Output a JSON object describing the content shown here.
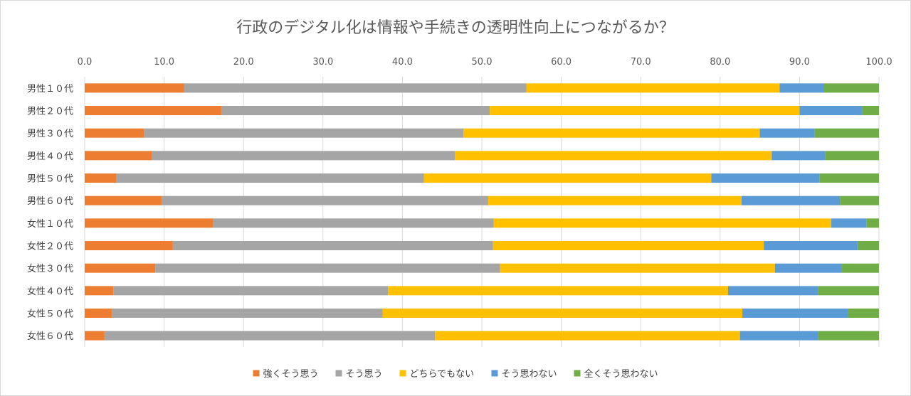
{
  "chart_data": {
    "type": "bar",
    "orientation": "horizontal",
    "stacked": true,
    "title": "行政のデジタル化は情報や手続きの透明性向上につながるか？",
    "xlabel": "",
    "ylabel": "",
    "xlim": [
      0,
      100
    ],
    "x_ticks": [
      "0.0",
      "10.0",
      "20.0",
      "30.0",
      "40.0",
      "50.0",
      "60.0",
      "70.0",
      "80.0",
      "90.0",
      "100.0"
    ],
    "x_axis_position": "top",
    "grid": true,
    "legend_position": "bottom",
    "categories": [
      "男性１０代",
      "男性２０代",
      "男性３０代",
      "男性４０代",
      "男性５０代",
      "男性６０代",
      "女性１０代",
      "女性２０代",
      "女性３０代",
      "女性４０代",
      "女性５０代",
      "女性６０代"
    ],
    "series": [
      {
        "name": "強くそう思う",
        "color": "#ed7d31",
        "values": [
          12.5,
          17.2,
          7.5,
          8.5,
          4.0,
          9.7,
          16.2,
          11.1,
          8.9,
          3.6,
          3.4,
          2.5
        ]
      },
      {
        "name": "そう思う",
        "color": "#a5a5a5",
        "values": [
          43.1,
          33.8,
          40.2,
          38.1,
          38.7,
          41.1,
          35.3,
          40.3,
          43.4,
          34.6,
          34.1,
          41.6
        ]
      },
      {
        "name": "どちらでもない",
        "color": "#ffc000",
        "values": [
          31.9,
          39.0,
          37.3,
          39.9,
          36.2,
          31.9,
          42.5,
          34.1,
          34.6,
          42.8,
          45.3,
          38.4
        ]
      },
      {
        "name": "そう思わない",
        "color": "#5b9bd5",
        "values": [
          5.6,
          7.9,
          6.9,
          6.7,
          13.6,
          12.4,
          4.4,
          11.8,
          8.4,
          11.3,
          13.3,
          9.8
        ]
      },
      {
        "name": "全くそう思わない",
        "color": "#70ad47",
        "values": [
          6.9,
          2.1,
          8.1,
          6.8,
          7.5,
          4.9,
          1.6,
          2.7,
          4.7,
          7.7,
          3.9,
          7.7
        ]
      }
    ]
  }
}
